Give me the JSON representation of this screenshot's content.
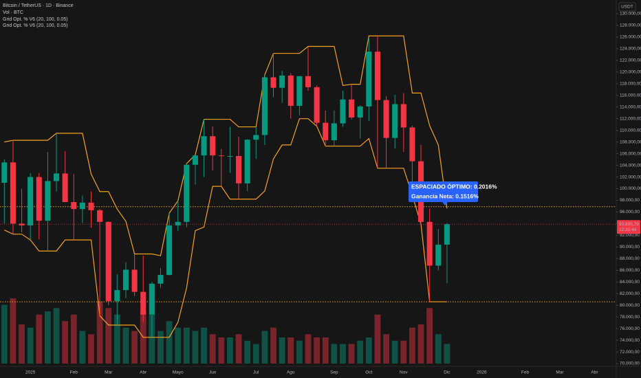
{
  "chart_data": {
    "type": "candlestick",
    "title": "Bitcoin / TetherUS · 1D · Binance",
    "volume_label": "Vol · BTC",
    "indicator_labels": [
      "Grid Opt. % V6 (20, 100, 0.05)",
      "Grid Opt. % V6 (20, 100, 0.05)"
    ],
    "currency": "USDT",
    "annotation": [
      "ESPACIADO ÓPTIMO: 0.2016%",
      "Ganancia Neta: 0.1516%"
    ],
    "last_price": {
      "value": 93895.79,
      "label": "93.895,79"
    },
    "countdown": "12:35:44",
    "up_color": "#089981",
    "down_color": "#f23645",
    "channel_color": "#f7a21b",
    "levels": [
      96900,
      80600
    ],
    "grid": false,
    "categories": [
      null,
      null,
      null,
      "2025",
      null,
      null,
      null,
      null,
      "Feb",
      null,
      null,
      null,
      "Mar",
      null,
      null,
      null,
      "Abr",
      null,
      null,
      null,
      "Mayo",
      null,
      null,
      null,
      "Jun",
      null,
      null,
      null,
      null,
      "Jul",
      null,
      null,
      null,
      "Ago",
      null,
      null,
      null,
      null,
      "Sep",
      null,
      null,
      null,
      "Oct",
      null,
      null,
      null,
      "Nov",
      null,
      null,
      null,
      null,
      "Dic",
      null,
      null,
      null,
      "2026",
      null,
      null,
      null,
      null,
      "Feb",
      null,
      null,
      null,
      "Mar",
      null,
      null,
      null,
      "Abr",
      null,
      null
    ],
    "open": [
      101000,
      104500,
      94000,
      93700,
      102000,
      94500,
      101300,
      102600,
      97700,
      96500,
      97600,
      96300,
      94300,
      80700,
      82600,
      86100,
      82300,
      78400,
      83700,
      85200,
      93700,
      94300,
      104100,
      105700,
      109000,
      105700,
      105600,
      105600,
      100900,
      108400,
      109200,
      119100,
      117300,
      119400,
      114200,
      119300,
      117400,
      111300,
      108300,
      111200,
      115300,
      112200,
      114100,
      123500,
      115200,
      108700,
      114500,
      110500,
      104700,
      94300,
      86800,
      90400,
      null,
      null,
      null,
      null,
      null,
      null,
      null,
      null,
      null,
      null,
      null,
      null,
      null,
      null,
      null,
      null,
      null,
      null,
      null
    ],
    "high": [
      105000,
      108300,
      100000,
      102700,
      102700,
      106300,
      109500,
      106400,
      102500,
      98800,
      99500,
      96500,
      94400,
      85300,
      87400,
      88800,
      88500,
      84000,
      86400,
      95800,
      97900,
      104300,
      105800,
      111900,
      110700,
      106800,
      110600,
      108900,
      108500,
      110600,
      119500,
      123200,
      120200,
      119800,
      119300,
      124400,
      117700,
      113400,
      113400,
      116800,
      117900,
      114300,
      125700,
      126200,
      115900,
      116100,
      116400,
      110800,
      107500,
      96600,
      93100,
      94100,
      null,
      null,
      null,
      null,
      null,
      null,
      null,
      null,
      null,
      null,
      null,
      null,
      null,
      null,
      null,
      null,
      null,
      null,
      null
    ],
    "low": [
      94000,
      92200,
      92500,
      91200,
      91300,
      89300,
      99500,
      97700,
      91200,
      94100,
      93300,
      78200,
      80000,
      76600,
      81200,
      81600,
      77100,
      74500,
      83000,
      85100,
      92800,
      93400,
      100700,
      102000,
      103100,
      100400,
      102700,
      98200,
      99600,
      105100,
      107500,
      115700,
      114700,
      112000,
      112600,
      116800,
      110700,
      107300,
      107400,
      110600,
      111900,
      108600,
      111600,
      103500,
      103600,
      106900,
      106300,
      98900,
      93900,
      80600,
      86000,
      83800,
      null,
      null,
      null,
      null,
      null,
      null,
      null,
      null,
      null,
      null,
      null,
      null,
      null,
      null,
      null,
      null,
      null,
      null,
      null
    ],
    "close": [
      104500,
      94000,
      93700,
      102000,
      94500,
      101300,
      102600,
      97700,
      96500,
      97600,
      96300,
      94300,
      80700,
      82600,
      86100,
      82300,
      78400,
      83700,
      85200,
      93700,
      94300,
      104100,
      105700,
      109000,
      105700,
      105600,
      105600,
      100900,
      108400,
      109200,
      119100,
      117300,
      119400,
      114200,
      119300,
      117400,
      111300,
      108300,
      111200,
      115300,
      112200,
      114100,
      123500,
      115200,
      108700,
      114500,
      110500,
      104700,
      94300,
      86800,
      90400,
      93895.79,
      null,
      null,
      null,
      null,
      null,
      null,
      null,
      null,
      null,
      null,
      null,
      null,
      null,
      null,
      null,
      null,
      null,
      null,
      null
    ],
    "volume": [
      180000,
      200000,
      120000,
      110000,
      150000,
      160000,
      170000,
      130000,
      150000,
      100000,
      90000,
      190000,
      170000,
      150000,
      110000,
      100000,
      160000,
      150000,
      100000,
      130000,
      110000,
      110000,
      100000,
      110000,
      90000,
      80000,
      80000,
      90000,
      70000,
      60000,
      100000,
      110000,
      80000,
      80000,
      70000,
      90000,
      80000,
      80000,
      60000,
      60000,
      60000,
      70000,
      80000,
      150000,
      90000,
      70000,
      70000,
      110000,
      120000,
      170000,
      90000,
      60000,
      null,
      null,
      null,
      null,
      null,
      null,
      null,
      null,
      null,
      null,
      null,
      null,
      null,
      null,
      null,
      null,
      null,
      null,
      null
    ],
    "upper": [
      108000,
      108300,
      108300,
      108300,
      108300,
      108300,
      109500,
      109500,
      109500,
      109500,
      102500,
      99500,
      99500,
      96500,
      94400,
      88800,
      88800,
      88800,
      88500,
      95800,
      97900,
      104300,
      105800,
      111900,
      111900,
      111900,
      111900,
      110600,
      110600,
      110600,
      119500,
      123200,
      123200,
      123200,
      123200,
      124400,
      124400,
      124400,
      124400,
      117700,
      117900,
      117900,
      126200,
      126200,
      126200,
      126200,
      126200,
      116400,
      116400,
      110800,
      107500,
      96600,
      null,
      null,
      null,
      null,
      null,
      null,
      null,
      null,
      null,
      null,
      null,
      null,
      null,
      null,
      null,
      null,
      null,
      null,
      null
    ],
    "lower": [
      92900,
      92200,
      92200,
      91200,
      89300,
      89300,
      89300,
      91200,
      91200,
      91200,
      91200,
      78200,
      76600,
      76600,
      76600,
      76600,
      74500,
      74500,
      74500,
      74500,
      77100,
      83000,
      92800,
      93400,
      100400,
      100400,
      98200,
      98200,
      98200,
      98200,
      99600,
      105100,
      107500,
      107500,
      112000,
      112000,
      110700,
      107300,
      107300,
      107300,
      107300,
      107300,
      108600,
      103500,
      103500,
      103500,
      103500,
      98900,
      93900,
      80600,
      80600,
      80600,
      null,
      null,
      null,
      null,
      null,
      null,
      null,
      null,
      null,
      null,
      null,
      null,
      null,
      null,
      null,
      null,
      null,
      null,
      null
    ],
    "ylim": [
      70000,
      130000
    ],
    "yticks": [
      {
        "value": 130000,
        "label": "130.000,00"
      },
      {
        "value": 128000,
        "label": "128.000,00"
      },
      {
        "value": 126000,
        "label": "126.000,00"
      },
      {
        "value": 124000,
        "label": "124.000,00"
      },
      {
        "value": 122000,
        "label": "122.000,00"
      },
      {
        "value": 120000,
        "label": "120.000,00"
      },
      {
        "value": 118000,
        "label": "118.000,00"
      },
      {
        "value": 116000,
        "label": "116.000,00"
      },
      {
        "value": 114000,
        "label": "114.000,00"
      },
      {
        "value": 112000,
        "label": "112.000,00"
      },
      {
        "value": 110000,
        "label": "110.000,00"
      },
      {
        "value": 108000,
        "label": "108.000,00"
      },
      {
        "value": 106000,
        "label": "106.000,00"
      },
      {
        "value": 104000,
        "label": "104.000,00"
      },
      {
        "value": 102000,
        "label": "102.000,00"
      },
      {
        "value": 100000,
        "label": "100.000,00"
      },
      {
        "value": 98000,
        "label": "98.000,00"
      },
      {
        "value": 96000,
        "label": "96.000,00"
      },
      {
        "value": 94000,
        "label": "94.000,00"
      },
      {
        "value": 92000,
        "label": "92.000,00"
      },
      {
        "value": 90000,
        "label": "90.000,00"
      },
      {
        "value": 88000,
        "label": "88.000,00"
      },
      {
        "value": 86000,
        "label": "86.000,00"
      },
      {
        "value": 84000,
        "label": "84.000,00"
      },
      {
        "value": 82000,
        "label": "82.000,00"
      },
      {
        "value": 80000,
        "label": "80.000,00"
      },
      {
        "value": 78000,
        "label": "78.000,00"
      },
      {
        "value": 76000,
        "label": "76.000,00"
      },
      {
        "value": 74000,
        "label": "74.000,00"
      },
      {
        "value": 72000,
        "label": "72.000,00"
      },
      {
        "value": 70000,
        "label": "70.000,00"
      }
    ]
  }
}
